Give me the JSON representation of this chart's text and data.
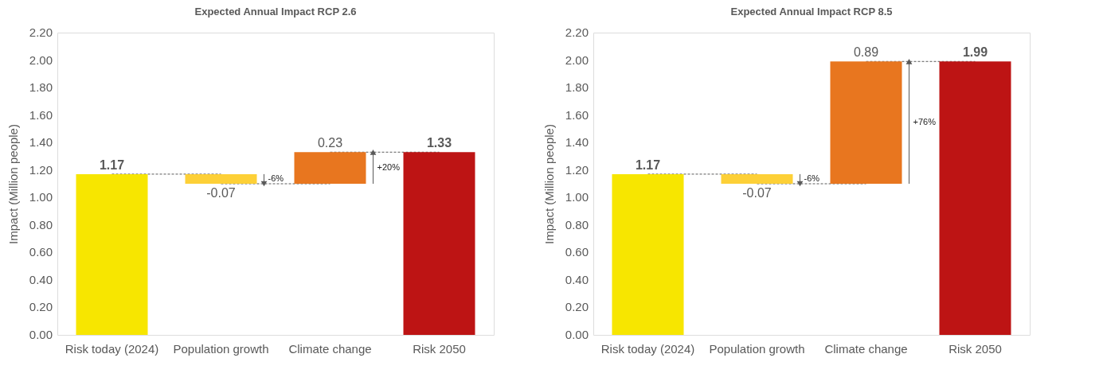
{
  "chart_data": [
    {
      "type": "bar",
      "title": "Expected Annual Impact RCP 2.6",
      "ylabel": "Impact (Million people)",
      "categories": [
        "Risk today (2024)",
        "Population growth",
        "Climate change",
        "Risk 2050"
      ],
      "values": [
        1.17,
        -0.07,
        0.23,
        1.33
      ],
      "base": [
        0,
        1.17,
        1.1,
        0
      ],
      "colors": [
        "#f7e600",
        "#fdd037",
        "#e8761f",
        "#bd1414"
      ],
      "ylim": [
        0,
        2.2
      ],
      "yticks": [
        {
          "value": 0,
          "label": "0.00"
        },
        {
          "value": 0.2,
          "label": "0.20"
        },
        {
          "value": 0.4,
          "label": "0.40"
        },
        {
          "value": 0.6,
          "label": "0.60"
        },
        {
          "value": 0.8,
          "label": "0.80"
        },
        {
          "value": 1,
          "label": "1.00"
        },
        {
          "value": 1.2,
          "label": "1.20"
        },
        {
          "value": 1.4,
          "label": "1.40"
        },
        {
          "value": 1.6,
          "label": "1.60"
        },
        {
          "value": 1.8,
          "label": "1.80"
        },
        {
          "value": 2,
          "label": "2.00"
        },
        {
          "value": 2.2,
          "label": "2.20"
        }
      ],
      "data_labels": true,
      "grid": false,
      "annotations": [
        "-6%",
        "+20%"
      ]
    },
    {
      "type": "bar",
      "title": "Expected Annual Impact RCP 8.5",
      "ylabel": "Impact (Million people)",
      "categories": [
        "Risk today (2024)",
        "Population growth",
        "Climate change",
        "Risk 2050"
      ],
      "values": [
        1.17,
        -0.07,
        0.89,
        1.99
      ],
      "base": [
        0,
        1.17,
        1.1,
        0
      ],
      "colors": [
        "#f7e600",
        "#fdd037",
        "#e8761f",
        "#bd1414"
      ],
      "ylim": [
        0,
        2.2
      ],
      "yticks": [
        {
          "value": 0,
          "label": "0.00"
        },
        {
          "value": 0.2,
          "label": "0.20"
        },
        {
          "value": 0.4,
          "label": "0.40"
        },
        {
          "value": 0.6,
          "label": "0.60"
        },
        {
          "value": 0.8,
          "label": "0.80"
        },
        {
          "value": 1,
          "label": "1.00"
        },
        {
          "value": 1.2,
          "label": "1.20"
        },
        {
          "value": 1.4,
          "label": "1.40"
        },
        {
          "value": 1.6,
          "label": "1.60"
        },
        {
          "value": 1.8,
          "label": "1.80"
        },
        {
          "value": 2,
          "label": "2.00"
        },
        {
          "value": 2.2,
          "label": "2.20"
        }
      ],
      "data_labels": true,
      "grid": false,
      "annotations": [
        "-6%",
        "+76%"
      ]
    }
  ]
}
